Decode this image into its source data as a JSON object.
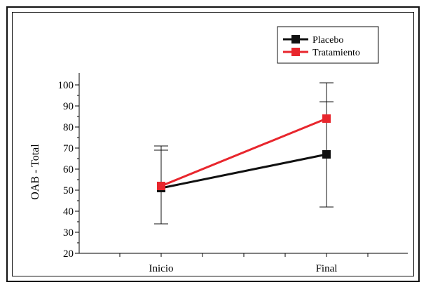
{
  "chart_data": {
    "type": "line",
    "categories": [
      "Inicio",
      "Final"
    ],
    "ylabel": "OAB - Total",
    "ylim": [
      20,
      100
    ],
    "yticks": [
      20,
      30,
      40,
      50,
      60,
      70,
      80,
      90,
      100
    ],
    "grid": false,
    "legend_position": "top-right",
    "series": [
      {
        "name": "Placebo",
        "color": "#111111",
        "values": [
          51,
          67
        ],
        "error_low": [
          34,
          42
        ],
        "error_high": [
          69,
          92
        ]
      },
      {
        "name": "Tratamiento",
        "color": "#e8262d",
        "values": [
          52,
          84
        ],
        "error_low": [
          34,
          42
        ],
        "error_high": [
          71,
          101
        ]
      }
    ]
  }
}
